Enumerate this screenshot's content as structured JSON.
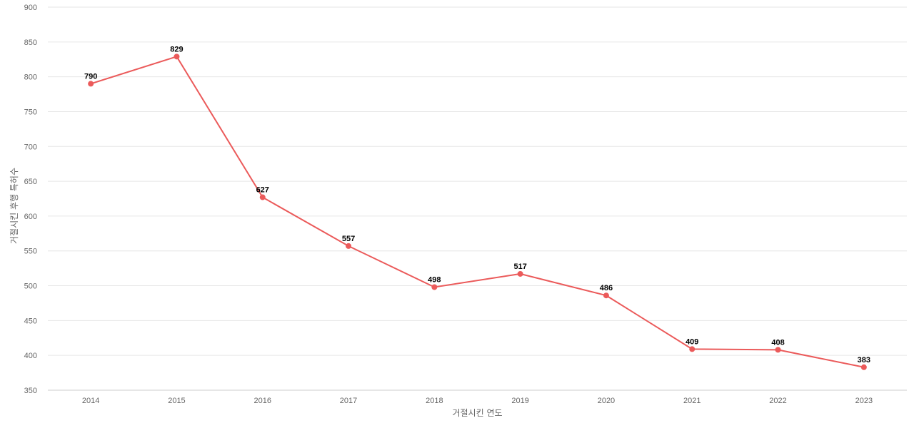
{
  "chart_data": {
    "type": "line",
    "title": "",
    "xlabel": "거절시킨 연도",
    "ylabel": "거절시킨 후행 특허수",
    "categories": [
      "2014",
      "2015",
      "2016",
      "2017",
      "2018",
      "2019",
      "2020",
      "2021",
      "2022",
      "2023"
    ],
    "series": [
      {
        "values": [
          790,
          829,
          627,
          557,
          498,
          517,
          486,
          409,
          408,
          383
        ],
        "color": "#eb5a5a"
      }
    ],
    "ylim": [
      350,
      900
    ],
    "yticks": [
      350,
      400,
      450,
      500,
      550,
      600,
      650,
      700,
      750,
      800,
      850,
      900
    ],
    "grid": true,
    "data_labels": true,
    "legend": "none"
  }
}
